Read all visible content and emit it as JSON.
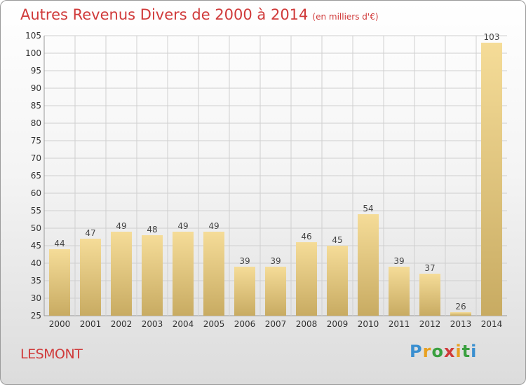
{
  "header": {
    "title": "Autres Revenus Divers de 2000 à 2014",
    "subtitle": "(en milliers d'€)"
  },
  "footer": {
    "place": "LESMONT",
    "brand": "Proxiti"
  },
  "colors": {
    "title": "#d03a3a",
    "bar_light": "#f5dc98",
    "bar_dark": "#c8ab62",
    "grid": "#cfcfcf",
    "brand_letters": [
      "#3a8fd0",
      "#e8a020",
      "#3aa040",
      "#d03a3a",
      "#e8a020",
      "#3aa040",
      "#3a8fd0"
    ]
  },
  "chart_data": {
    "type": "bar",
    "title": "Autres Revenus Divers de 2000 à 2014",
    "subtitle": "(en milliers d'€)",
    "categories": [
      "2000",
      "2001",
      "2002",
      "2003",
      "2004",
      "2005",
      "2006",
      "2007",
      "2008",
      "2009",
      "2010",
      "2011",
      "2012",
      "2013",
      "2014"
    ],
    "values": [
      44,
      47,
      49,
      48,
      49,
      49,
      39,
      39,
      46,
      45,
      54,
      39,
      37,
      26,
      103
    ],
    "xlabel": "",
    "ylabel": "",
    "ylim": [
      25,
      105
    ],
    "yticks": [
      25,
      30,
      35,
      40,
      45,
      50,
      55,
      60,
      65,
      70,
      75,
      80,
      85,
      90,
      95,
      100,
      105
    ],
    "grid": true,
    "data_labels": true,
    "legend": "none"
  }
}
